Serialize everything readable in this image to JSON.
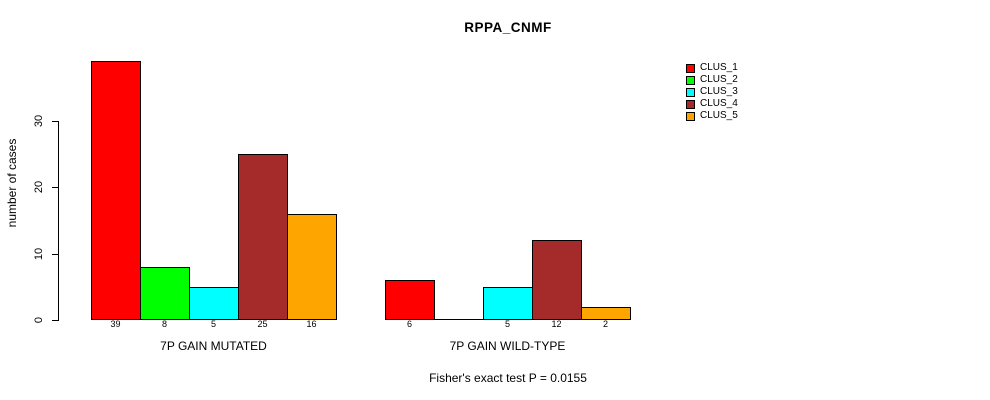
{
  "chart": {
    "title": "RPPA_CNMF",
    "ylabel": "number of cases",
    "footnote": "Fisher's exact test P = 0.0155"
  },
  "chart_data": {
    "type": "bar",
    "title": "RPPA_CNMF",
    "xlabel": "",
    "ylabel": "number of cases",
    "ylim": [
      0,
      41
    ],
    "yticks": [
      0,
      10,
      20,
      30
    ],
    "grid": false,
    "legend_position": "right",
    "series_names": [
      "CLUS_1",
      "CLUS_2",
      "CLUS_3",
      "CLUS_4",
      "CLUS_5"
    ],
    "series_colors": [
      "#FF0000",
      "#00FF00",
      "#00FFFF",
      "#A52A2A",
      "#FFA500"
    ],
    "groups": [
      {
        "label": "7P GAIN MUTATED",
        "values": [
          39,
          8,
          5,
          25,
          16
        ]
      },
      {
        "label": "7P GAIN WILD-TYPE",
        "values": [
          6,
          0,
          5,
          12,
          2
        ]
      }
    ],
    "annotation": "Fisher's exact test P = 0.0155"
  }
}
